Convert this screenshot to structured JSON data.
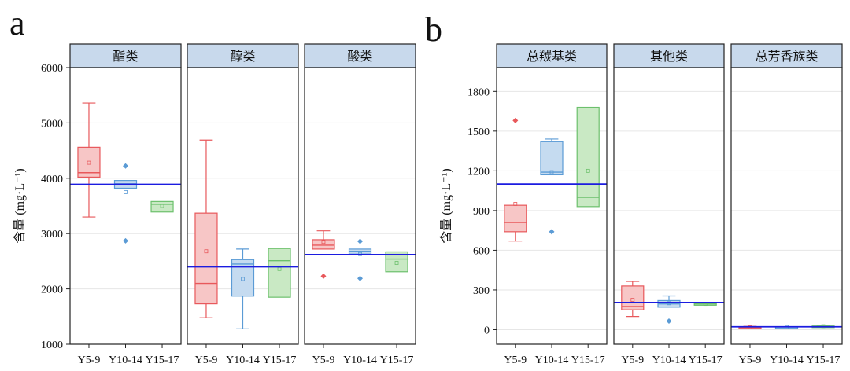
{
  "panel_labels": [
    "a",
    "b"
  ],
  "colors": {
    "Y5-9": "#e8585b",
    "Y10-14": "#5b9bd5",
    "Y15-17": "#6cc06c",
    "Y5-9_fill": "#f7c6c6",
    "Y10-14_fill": "#c5dbf0",
    "Y15-17_fill": "#c9e9c4",
    "strip_bg": "#c8d9ec",
    "mean_line": "#1c1ce0",
    "grid": "#e6e6e6"
  },
  "chart_data": [
    {
      "type": "box",
      "panel": "a",
      "ylabel": "含量 (mg·L⁻¹)",
      "ylim": [
        1000,
        6000
      ],
      "yticks": [
        1000,
        2000,
        3000,
        4000,
        5000,
        6000
      ],
      "categories": [
        "Y5-9",
        "Y10-14",
        "Y15-17"
      ],
      "facets": [
        {
          "title": "酯类",
          "ref_line": 3890,
          "boxes": [
            {
              "group": "Y5-9",
              "min": 3300,
              "q1": 4020,
              "median": 4100,
              "q3": 4560,
              "max": 5360,
              "mean": 4280,
              "outliers": []
            },
            {
              "group": "Y10-14",
              "min": 3820,
              "q1": 3820,
              "median": 3900,
              "q3": 3960,
              "max": 3960,
              "mean": 3750,
              "outliers": [
                4220,
                2870
              ]
            },
            {
              "group": "Y15-17",
              "min": 3390,
              "q1": 3390,
              "median": 3530,
              "q3": 3580,
              "max": 3580,
              "mean": 3500,
              "outliers": []
            }
          ]
        },
        {
          "title": "醇类",
          "ref_line": 2400,
          "boxes": [
            {
              "group": "Y5-9",
              "min": 1480,
              "q1": 1730,
              "median": 2100,
              "q3": 3370,
              "max": 4690,
              "mean": 2680,
              "outliers": []
            },
            {
              "group": "Y10-14",
              "min": 1280,
              "q1": 1870,
              "median": 2450,
              "q3": 2530,
              "max": 2720,
              "mean": 2180,
              "outliers": []
            },
            {
              "group": "Y15-17",
              "min": 1850,
              "q1": 1850,
              "median": 2510,
              "q3": 2730,
              "max": 2730,
              "mean": 2360,
              "outliers": []
            }
          ]
        },
        {
          "title": "酸类",
          "ref_line": 2620,
          "boxes": [
            {
              "group": "Y5-9",
              "min": 2720,
              "q1": 2720,
              "median": 2790,
              "q3": 2890,
              "max": 3050,
              "mean": 2850,
              "outliers": [
                2230
              ]
            },
            {
              "group": "Y10-14",
              "min": 2630,
              "q1": 2630,
              "median": 2680,
              "q3": 2720,
              "max": 2720,
              "mean": 2630,
              "outliers": [
                2860,
                2190
              ]
            },
            {
              "group": "Y15-17",
              "min": 2310,
              "q1": 2310,
              "median": 2540,
              "q3": 2670,
              "max": 2670,
              "mean": 2470,
              "outliers": []
            }
          ]
        }
      ]
    },
    {
      "type": "box",
      "panel": "b",
      "ylabel": "含量 (mg·L⁻¹)",
      "ylim": [
        -110,
        1980
      ],
      "yticks": [
        0,
        300,
        600,
        900,
        1200,
        1500,
        1800
      ],
      "categories": [
        "Y5-9",
        "Y10-14",
        "Y15-17"
      ],
      "facets": [
        {
          "title": "总羰基类",
          "ref_line": 1100,
          "boxes": [
            {
              "group": "Y5-9",
              "min": 670,
              "q1": 740,
              "median": 810,
              "q3": 940,
              "max": 940,
              "mean": 950,
              "outliers": [
                1580
              ]
            },
            {
              "group": "Y10-14",
              "min": 1170,
              "q1": 1170,
              "median": 1190,
              "q3": 1420,
              "max": 1440,
              "mean": 1190,
              "outliers": [
                740
              ]
            },
            {
              "group": "Y15-17",
              "min": 930,
              "q1": 930,
              "median": 1000,
              "q3": 1680,
              "max": 1680,
              "mean": 1200,
              "outliers": []
            }
          ]
        },
        {
          "title": "其他类",
          "ref_line": 205,
          "boxes": [
            {
              "group": "Y5-9",
              "min": 100,
              "q1": 150,
              "median": 175,
              "q3": 330,
              "max": 365,
              "mean": 225,
              "outliers": []
            },
            {
              "group": "Y10-14",
              "min": 170,
              "q1": 170,
              "median": 195,
              "q3": 220,
              "max": 255,
              "mean": 200,
              "outliers": [
                65
              ]
            },
            {
              "group": "Y15-17",
              "min": 185,
              "q1": 185,
              "median": 195,
              "q3": 205,
              "max": 205,
              "mean": 195,
              "outliers": []
            }
          ]
        },
        {
          "title": "总芳香族类",
          "ref_line": 22,
          "boxes": [
            {
              "group": "Y5-9",
              "min": 12,
              "q1": 15,
              "median": 18,
              "q3": 22,
              "max": 25,
              "mean": 18,
              "outliers": []
            },
            {
              "group": "Y10-14",
              "min": 17,
              "q1": 18,
              "median": 20,
              "q3": 22,
              "max": 23,
              "mean": 20,
              "outliers": []
            },
            {
              "group": "Y15-17",
              "min": 22,
              "q1": 24,
              "median": 26,
              "q3": 28,
              "max": 30,
              "mean": 26,
              "outliers": []
            }
          ]
        }
      ]
    }
  ]
}
